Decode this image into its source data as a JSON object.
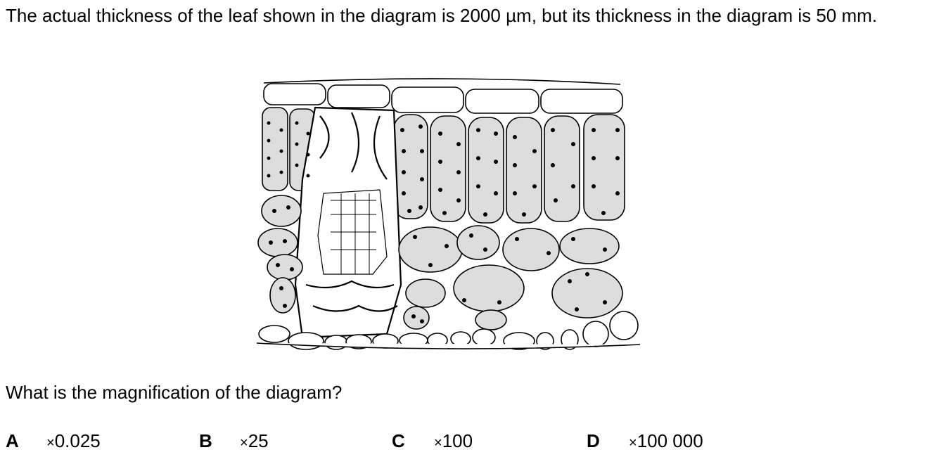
{
  "question": {
    "text": "The actual thickness of the leaf shown in the diagram is 2000 µm, but its thickness in the diagram is 50 mm."
  },
  "prompt": {
    "text": "What is the magnification of the diagram?"
  },
  "options": [
    {
      "letter": "A",
      "value": "0.025"
    },
    {
      "letter": "B",
      "value": "25"
    },
    {
      "letter": "C",
      "value": "100"
    },
    {
      "letter": "D",
      "value": "100 000"
    }
  ],
  "symbols": {
    "times": "×"
  }
}
